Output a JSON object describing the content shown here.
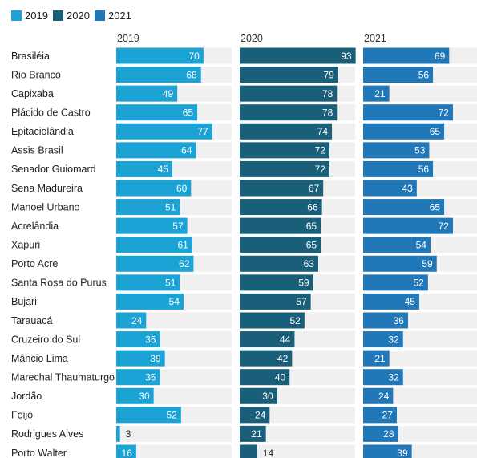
{
  "colors": {
    "2019": "#1ba3d6",
    "2020": "#1a5f7a",
    "2021": "#2178b8",
    "track": "#f0f0f0"
  },
  "chart_data": {
    "type": "bar",
    "title": "",
    "xlabel": "",
    "ylabel": "",
    "xlim": [
      0,
      100
    ],
    "legend_position": "top-left",
    "categories": [
      "Brasiléia",
      "Rio Branco",
      "Capixaba",
      "Plácido de Castro",
      "Epitaciolândia",
      "Assis Brasil",
      "Senador Guiomard",
      "Sena Madureira",
      "Manoel Urbano",
      "Acrelândia",
      "Xapuri",
      "Porto Acre",
      "Santa Rosa do Purus",
      "Bujari",
      "Tarauacá",
      "Cruzeiro do Sul",
      "Mâncio Lima",
      "Marechal Thaumaturgo",
      "Jordão",
      "Feijó",
      "Rodrigues Alves",
      "Porto Walter"
    ],
    "series": [
      {
        "name": "2019",
        "color": "#1ba3d6",
        "values": [
          70,
          68,
          49,
          65,
          77,
          64,
          45,
          60,
          51,
          57,
          61,
          62,
          51,
          54,
          24,
          35,
          39,
          35,
          30,
          52,
          3,
          16
        ]
      },
      {
        "name": "2020",
        "color": "#1a5f7a",
        "values": [
          93,
          79,
          78,
          78,
          74,
          72,
          72,
          67,
          66,
          65,
          65,
          63,
          59,
          57,
          52,
          44,
          42,
          40,
          30,
          24,
          21,
          14
        ]
      },
      {
        "name": "2021",
        "color": "#2178b8",
        "values": [
          69,
          56,
          21,
          72,
          65,
          53,
          56,
          43,
          65,
          72,
          54,
          59,
          52,
          45,
          36,
          32,
          21,
          32,
          24,
          27,
          28,
          39
        ]
      }
    ]
  }
}
